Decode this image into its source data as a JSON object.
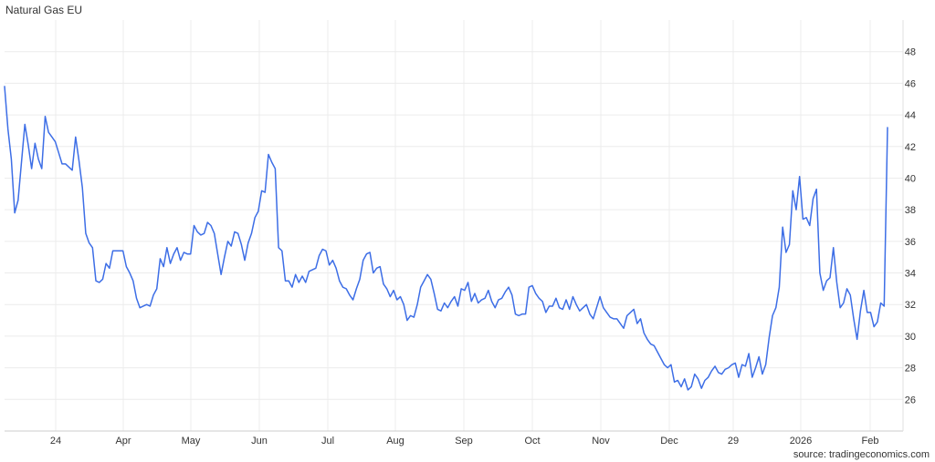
{
  "title": "Natural Gas EU",
  "source": "source: tradingeconomics.com",
  "chart_data": {
    "type": "line",
    "title": "Natural Gas EU",
    "xlabel": "",
    "ylabel": "",
    "ylim": [
      24,
      50
    ],
    "y_ticks": [
      26,
      28,
      30,
      32,
      34,
      36,
      38,
      40,
      42,
      44,
      46,
      48
    ],
    "x_ticks": [
      "24",
      "Apr",
      "May",
      "Jun",
      "Jul",
      "Aug",
      "Sep",
      "Oct",
      "Nov",
      "Dec",
      "29",
      "2026",
      "Feb"
    ],
    "grid": true,
    "legend": "none",
    "line_color": "#3d6ee6",
    "series": [
      {
        "values": [
          45.8,
          43.1,
          41.2,
          37.8,
          38.6,
          41.0,
          43.4,
          42.1,
          40.6,
          42.2,
          41.2,
          40.6,
          43.9,
          42.9,
          42.6,
          42.3,
          41.6,
          40.9,
          40.9,
          40.7,
          40.5,
          42.6,
          41.1,
          39.4,
          36.5,
          35.9,
          35.6,
          33.5,
          33.4,
          33.6,
          34.6,
          34.3,
          35.4,
          35.4,
          35.4,
          35.4,
          34.4,
          34.0,
          33.5,
          32.4,
          31.8,
          31.9,
          32.0,
          31.9,
          32.6,
          33.0,
          34.9,
          34.4,
          35.6,
          34.6,
          35.2,
          35.6,
          34.8,
          35.3,
          35.2,
          35.2,
          37.0,
          36.6,
          36.4,
          36.5,
          37.2,
          37.0,
          36.5,
          35.2,
          33.9,
          35.0,
          36.0,
          35.7,
          36.6,
          36.5,
          35.8,
          34.8,
          35.9,
          36.5,
          37.5,
          37.9,
          39.2,
          39.1,
          41.5,
          41.0,
          40.6,
          35.6,
          35.4,
          33.5,
          33.5,
          33.1,
          33.9,
          33.4,
          33.8,
          33.4,
          34.1,
          34.2,
          34.3,
          35.1,
          35.5,
          35.4,
          34.5,
          34.8,
          34.3,
          33.5,
          33.1,
          33.0,
          32.6,
          32.3,
          33.0,
          33.6,
          34.8,
          35.2,
          35.3,
          34.0,
          34.3,
          34.4,
          33.3,
          33.0,
          32.5,
          32.9,
          32.3,
          32.5,
          32.0,
          31.0,
          31.3,
          31.2,
          32.0,
          33.1,
          33.5,
          33.9,
          33.6,
          32.7,
          31.7,
          31.6,
          32.1,
          31.8,
          32.2,
          32.5,
          31.9,
          33.0,
          32.9,
          33.4,
          32.2,
          32.7,
          32.1,
          32.3,
          32.4,
          32.9,
          32.2,
          31.8,
          32.3,
          32.4,
          32.8,
          33.1,
          32.6,
          31.4,
          31.3,
          31.4,
          31.4,
          33.1,
          33.2,
          32.7,
          32.4,
          32.2,
          31.5,
          31.9,
          31.9,
          32.4,
          31.8,
          31.7,
          32.3,
          31.7,
          32.5,
          32.0,
          31.6,
          31.8,
          32.0,
          31.4,
          31.1,
          31.8,
          32.5,
          31.8,
          31.5,
          31.2,
          31.1,
          31.1,
          30.8,
          30.5,
          31.3,
          31.5,
          31.7,
          30.8,
          31.1,
          30.2,
          29.8,
          29.5,
          29.4,
          29.0,
          28.6,
          28.2,
          28.0,
          28.2,
          27.1,
          27.2,
          26.8,
          27.3,
          26.6,
          26.8,
          27.6,
          27.3,
          26.7,
          27.2,
          27.4,
          27.8,
          28.1,
          27.7,
          27.6,
          27.9,
          28.0,
          28.2,
          28.3,
          27.4,
          28.2,
          28.1,
          28.9,
          27.4,
          28.0,
          28.7,
          27.6,
          28.2,
          29.9,
          31.3,
          31.8,
          33.1,
          36.9,
          35.3,
          35.8,
          39.2,
          38.0,
          40.1,
          37.4,
          37.5,
          37.0,
          38.7,
          39.3,
          34.0,
          32.9,
          33.5,
          33.7,
          35.6,
          33.4,
          31.8,
          32.1,
          33.0,
          32.6,
          31.1,
          29.8,
          31.6,
          32.9,
          31.5,
          31.5,
          30.6,
          30.9,
          32.1,
          31.9,
          43.2
        ]
      }
    ]
  }
}
